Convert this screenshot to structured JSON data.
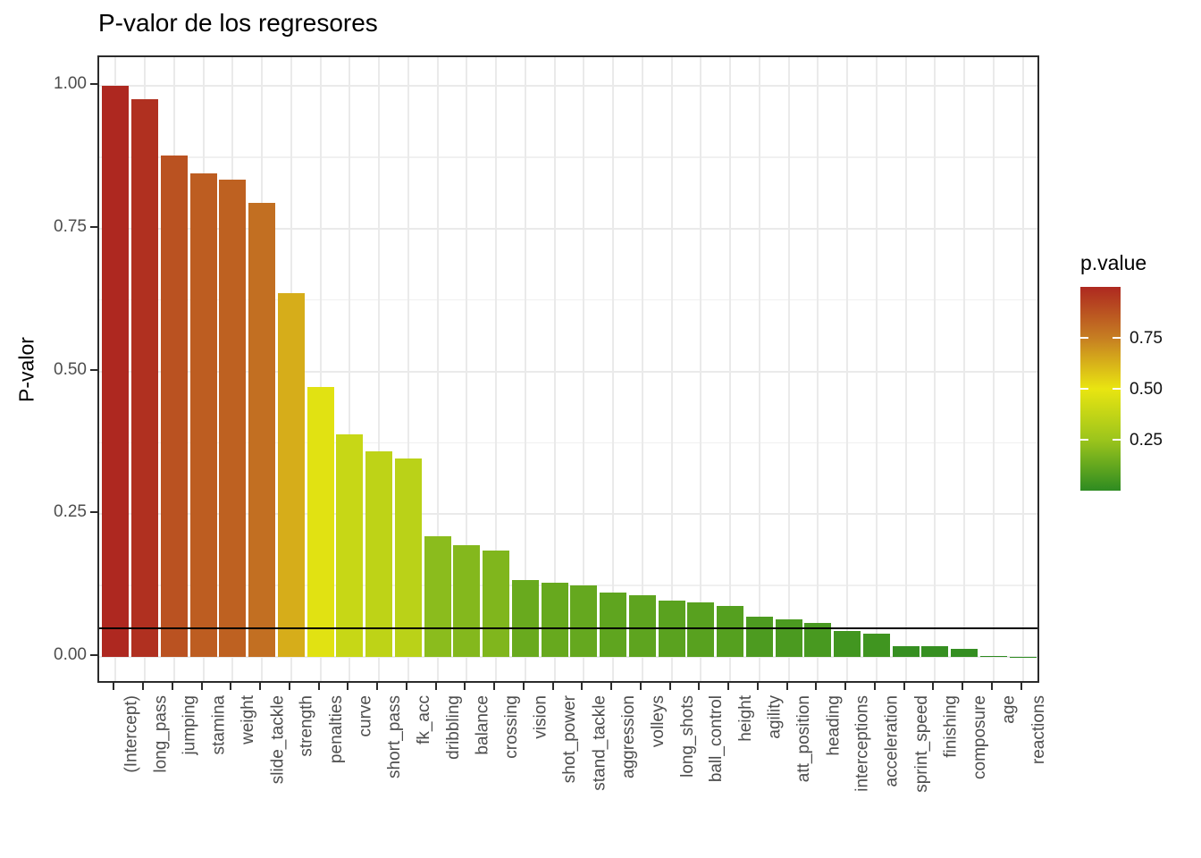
{
  "figure": {
    "background": "#FFFFFF"
  },
  "chart_data": {
    "type": "bar",
    "title": "P-valor de los regresores",
    "xlabel": "",
    "ylabel": "P-valor",
    "ylim": [
      0,
      1.05
    ],
    "grid": "on",
    "y_ticks": [
      {
        "label": "1.00",
        "value": 1.0
      },
      {
        "label": "0.75",
        "value": 0.75
      },
      {
        "label": "0.50",
        "value": 0.5
      },
      {
        "label": "0.25",
        "value": 0.25
      },
      {
        "label": "0.00",
        "value": 0.0
      }
    ],
    "y_minor_ticks": [
      0.125,
      0.375,
      0.625,
      0.875
    ],
    "reference_line": {
      "value": 0.05,
      "color": "#000000"
    },
    "categories": [
      "(Intercept)",
      "long_pass",
      "jumping",
      "stamina",
      "weight",
      "slide_tackle",
      "strength",
      "penalties",
      "curve",
      "short_pass",
      "fk_acc",
      "dribbling",
      "balance",
      "crossing",
      "vision",
      "shot_power",
      "stand_tackle",
      "aggression",
      "volleys",
      "long_shots",
      "ball_control",
      "height",
      "agility",
      "att_position",
      "heading",
      "interceptions",
      "acceleration",
      "sprint_speed",
      "finishing",
      "composure",
      "age",
      "reactions"
    ],
    "values": [
      1.0,
      0.977,
      0.878,
      0.847,
      0.835,
      0.795,
      0.637,
      0.473,
      0.39,
      0.36,
      0.348,
      0.211,
      0.196,
      0.186,
      0.134,
      0.13,
      0.125,
      0.112,
      0.108,
      0.099,
      0.095,
      0.089,
      0.071,
      0.065,
      0.059,
      0.046,
      0.041,
      0.019,
      0.019,
      0.014,
      0.001,
      0.0005
    ],
    "legend": {
      "title": "p.value",
      "position": "right",
      "range": [
        0,
        1
      ],
      "tick_labels": [
        "0.75",
        "0.50",
        "0.25"
      ],
      "tick_values": [
        0.75,
        0.5,
        0.25
      ]
    },
    "palette_stops": [
      {
        "value": 0.0,
        "color": "#2E8B21"
      },
      {
        "value": 0.25,
        "color": "#9CC51C"
      },
      {
        "value": 0.5,
        "color": "#E9E511"
      },
      {
        "value": 0.75,
        "color": "#C67E22"
      },
      {
        "value": 1.0,
        "color": "#AE2820"
      }
    ],
    "colors": {
      "gridline_major": "#EAEAEA",
      "gridline_minor": "#F0F0F0",
      "panel_border": "#2B2B2B",
      "axis_text": "#4D4D4D",
      "reference_line": "#000000"
    }
  }
}
